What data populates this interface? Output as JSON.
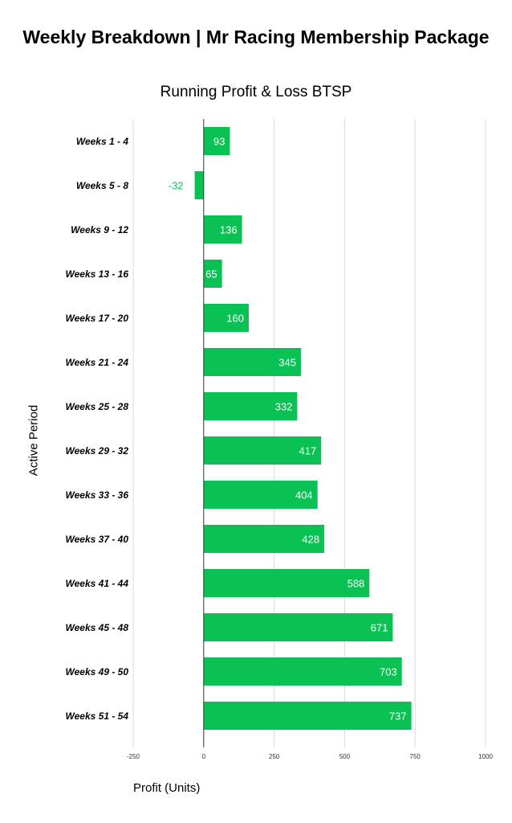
{
  "chart_data": {
    "type": "bar",
    "orientation": "horizontal",
    "title": "Weekly Breakdown | Mr Racing Membership Package",
    "subtitle": "Running Profit & Loss BTSP",
    "xlabel": "Profit (Units)",
    "ylabel": "Active Period",
    "xlim": [
      -250,
      1000
    ],
    "xticks": [
      -250,
      0,
      250,
      500,
      750,
      1000
    ],
    "grid": true,
    "categories": [
      "Weeks 1 - 4",
      "Weeks 5 - 8",
      "Weeks 9 - 12",
      "Weeks 13 - 16",
      "Weeks 17 - 20",
      "Weeks 21 - 24",
      "Weeks 25 - 28",
      "Weeks 29 - 32",
      "Weeks 33 - 36",
      "Weeks 37 - 40",
      "Weeks 41 - 44",
      "Weeks 45 - 48",
      "Weeks 49 - 50",
      "Weeks 51 - 54"
    ],
    "values": [
      93,
      -32,
      136,
      65,
      160,
      345,
      332,
      417,
      404,
      428,
      588,
      671,
      703,
      737
    ],
    "bar_color": "#0ac254",
    "label_color_inside": "#ffffff",
    "label_color_outside": "#0ac254"
  }
}
